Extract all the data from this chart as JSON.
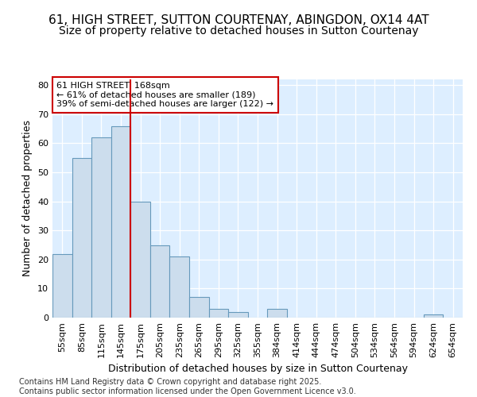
{
  "title1": "61, HIGH STREET, SUTTON COURTENAY, ABINGDON, OX14 4AT",
  "title2": "Size of property relative to detached houses in Sutton Courtenay",
  "xlabel": "Distribution of detached houses by size in Sutton Courtenay",
  "ylabel": "Number of detached properties",
  "categories": [
    "55sqm",
    "85sqm",
    "115sqm",
    "145sqm",
    "175sqm",
    "205sqm",
    "235sqm",
    "265sqm",
    "295sqm",
    "325sqm",
    "355sqm",
    "384sqm",
    "414sqm",
    "444sqm",
    "474sqm",
    "504sqm",
    "534sqm",
    "564sqm",
    "594sqm",
    "624sqm",
    "654sqm"
  ],
  "values": [
    22,
    55,
    62,
    66,
    40,
    25,
    21,
    7,
    3,
    2,
    0,
    3,
    0,
    0,
    0,
    0,
    0,
    0,
    0,
    1,
    0
  ],
  "bar_color": "#ccdded",
  "bar_edge_color": "#6699bb",
  "vline_color": "#cc0000",
  "vline_x_idx": 3.5,
  "annotation_text": "61 HIGH STREET: 168sqm\n← 61% of detached houses are smaller (189)\n39% of semi-detached houses are larger (122) →",
  "annotation_box_facecolor": "#ffffff",
  "annotation_box_edgecolor": "#cc0000",
  "ylim": [
    0,
    82
  ],
  "yticks": [
    0,
    10,
    20,
    30,
    40,
    50,
    60,
    70,
    80
  ],
  "plot_bg_color": "#ddeeff",
  "fig_bg_color": "#ffffff",
  "grid_color": "#ffffff",
  "title1_fontsize": 11,
  "title2_fontsize": 10,
  "axis_label_fontsize": 9,
  "tick_fontsize": 8,
  "annotation_fontsize": 8,
  "footer_fontsize": 7,
  "footer": "Contains HM Land Registry data © Crown copyright and database right 2025.\nContains public sector information licensed under the Open Government Licence v3.0."
}
